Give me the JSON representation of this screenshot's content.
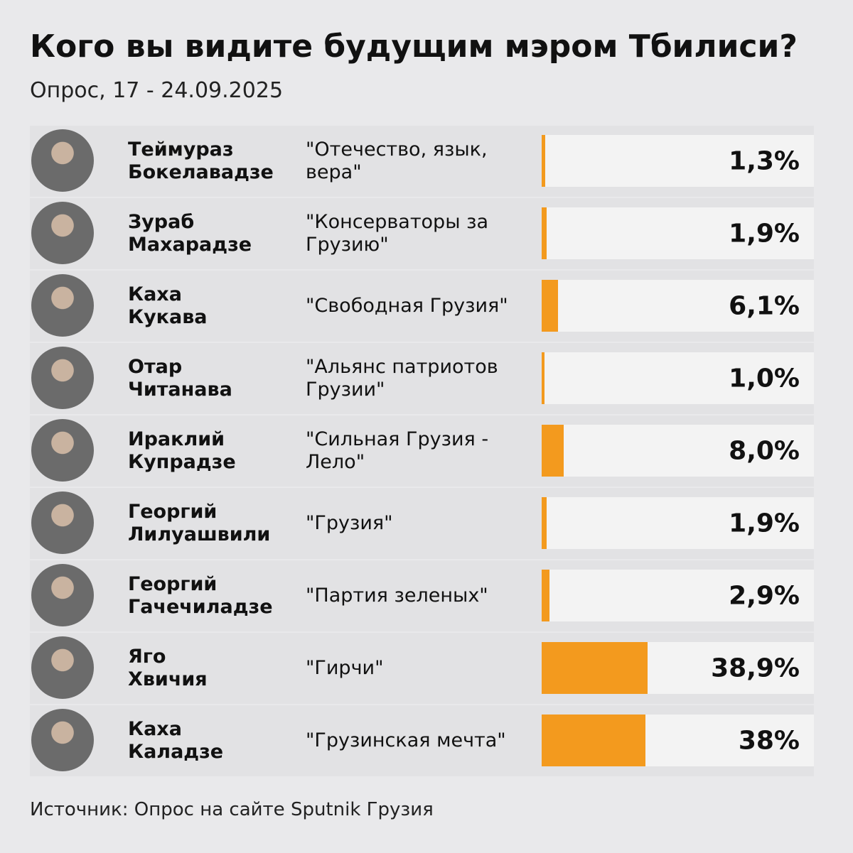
{
  "chart_data": {
    "type": "bar",
    "title": "Кого вы видите будущим мэром Тбилиси?",
    "subtitle": "Опрос, 17 - 24.09.2025",
    "categories": [
      "Теймураз Бокелавадзе",
      "Зураб Махарадзе",
      "Каха Кукава",
      "Отар Читанава",
      "Ираклий Купрадзе",
      "Георгий Лилуашвили",
      "Георгий Гачечиладзе",
      "Яго Хвичия",
      "Каха Каладзе"
    ],
    "parties": [
      "\"Отечество, язык, вера\"",
      "\"Консерваторы за Грузию\"",
      "\"Свободная Грузия\"",
      "\"Альянс патриотов Грузии\"",
      "\"Сильная Грузия - Лело\"",
      "\"Грузия\"",
      "\"Партия зеленых\"",
      "\"Гирчи\"",
      "\"Грузинская мечта\""
    ],
    "values": [
      1.3,
      1.9,
      6.1,
      1.0,
      8.0,
      1.9,
      2.9,
      38.9,
      38
    ],
    "value_labels": [
      "1,3%",
      "1,9%",
      "6,1%",
      "1,0%",
      "8,0%",
      "1,9%",
      "2,9%",
      "38,9%",
      "38%"
    ],
    "color": "#f39a1e",
    "xlim": [
      0,
      100
    ],
    "source": "Источник: Опрос на сайте Sputnik Грузия"
  }
}
